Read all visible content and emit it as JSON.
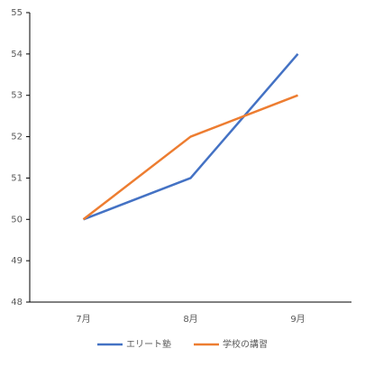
{
  "chart_data": {
    "type": "line",
    "categories": [
      "7月",
      "8月",
      "9月"
    ],
    "series": [
      {
        "name": "エリート塾",
        "color": "#4472c4",
        "values": [
          50,
          51,
          54
        ]
      },
      {
        "name": "学校の講習",
        "color": "#ed7d31",
        "values": [
          50,
          52,
          53
        ]
      }
    ],
    "ylim": [
      48,
      55
    ],
    "yticks": [
      48,
      49,
      50,
      51,
      52,
      53,
      54,
      55
    ],
    "legend": "bottom"
  }
}
